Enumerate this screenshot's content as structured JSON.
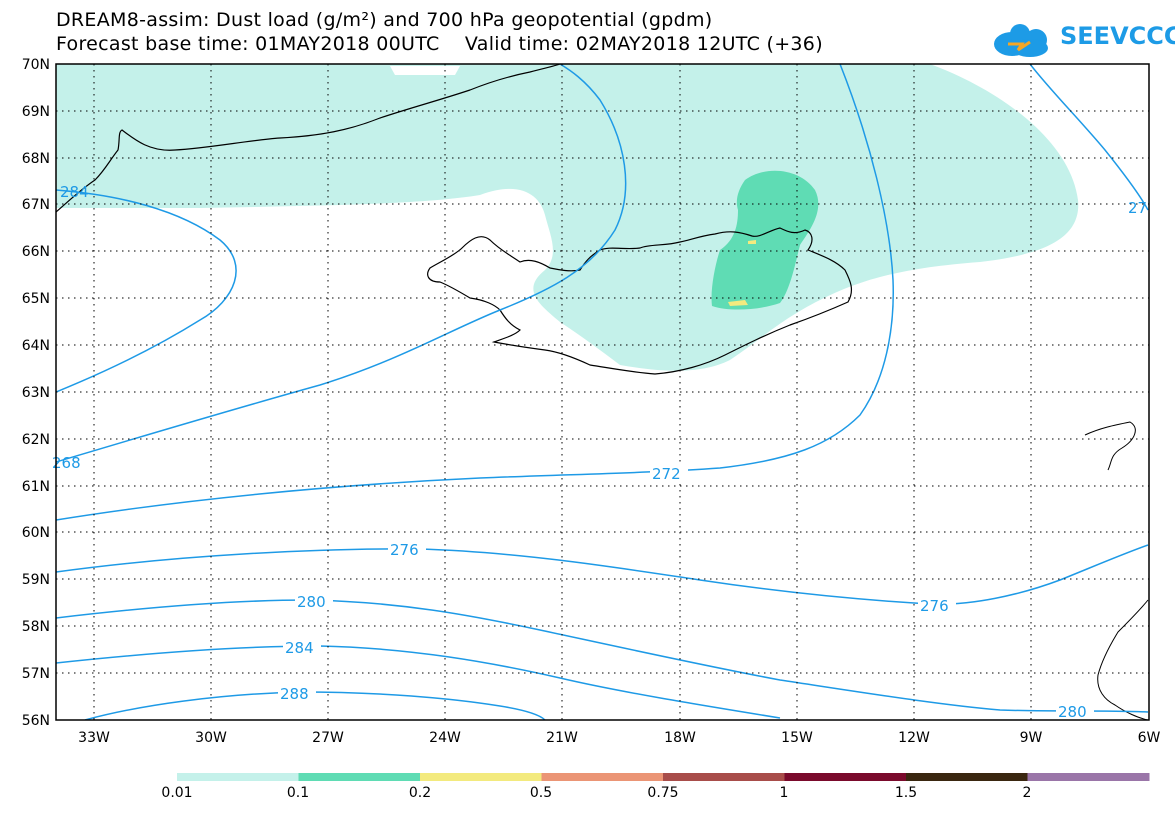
{
  "title_line1": "DREAM8-assim: Dust load (g/m²) and 700 hPa geopotential (gpdm)",
  "title_line2": "Forecast base time: 01MAY2018 00UTC    Valid time: 02MAY2018 12UTC (+36)",
  "logo_text": "SEEVCCC",
  "map": {
    "lon_labels": [
      "33W",
      "30W",
      "27W",
      "24W",
      "21W",
      "18W",
      "15W",
      "12W",
      "9W",
      "6W"
    ],
    "lat_labels": [
      "56N",
      "57N",
      "58N",
      "59N",
      "60N",
      "61N",
      "62N",
      "63N",
      "64N",
      "65N",
      "66N",
      "67N",
      "68N",
      "69N",
      "70N"
    ],
    "contour_labels": [
      "272",
      "276",
      "276",
      "280",
      "280",
      "284",
      "288",
      "268",
      "284",
      "27"
    ]
  },
  "legend": {
    "labels": [
      "0.01",
      "0.1",
      "0.2",
      "0.5",
      "0.75",
      "1",
      "1.5",
      "2"
    ],
    "colors": [
      "#c4f1ea",
      "#5fdcb4",
      "#f3ea7e",
      "#eb9575",
      "#a84d4a",
      "#7a0a2c",
      "#3a2710",
      "#9a75a8"
    ]
  }
}
